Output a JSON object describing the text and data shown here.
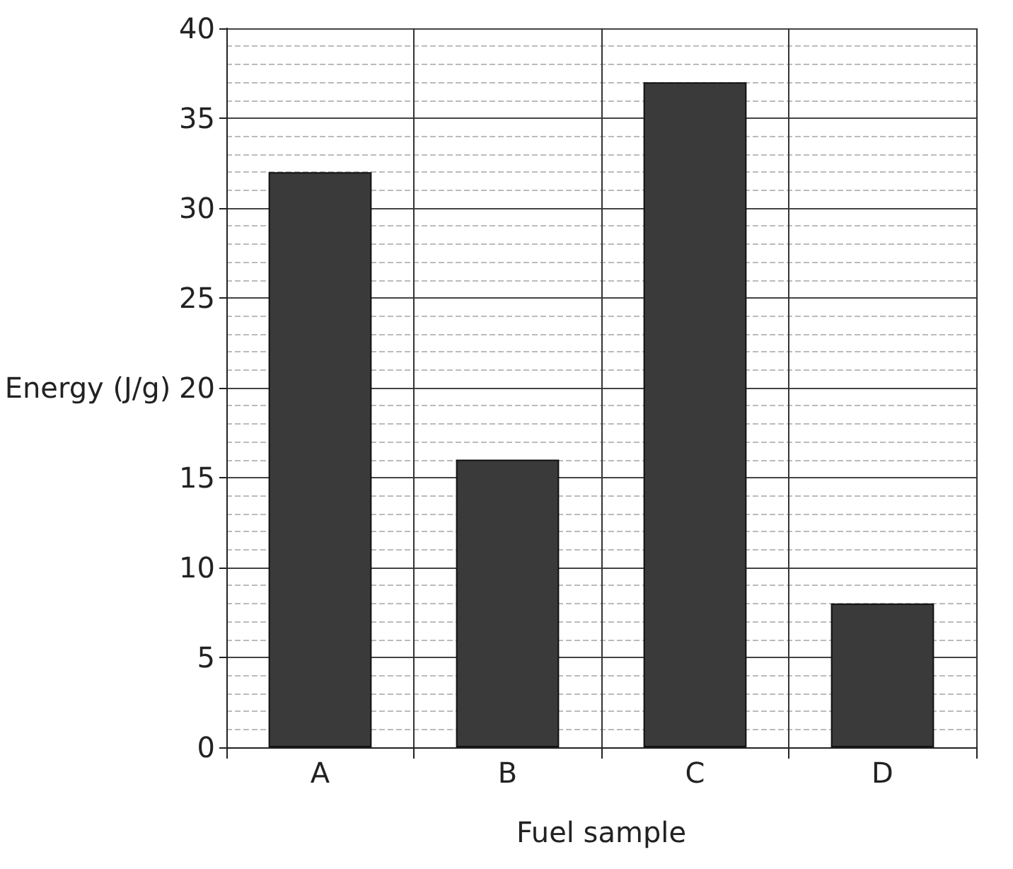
{
  "chart_data": {
    "type": "bar",
    "xlabel": "Fuel sample",
    "ylabel": "Energy (J/g)",
    "categories": [
      "A",
      "B",
      "C",
      "D"
    ],
    "values": [
      32,
      16,
      37,
      8
    ],
    "color": "#3a3a3a",
    "ylim": [
      0,
      40
    ],
    "yticks": [
      0,
      5,
      10,
      15,
      20,
      25,
      30,
      35,
      40
    ],
    "grid": true
  }
}
